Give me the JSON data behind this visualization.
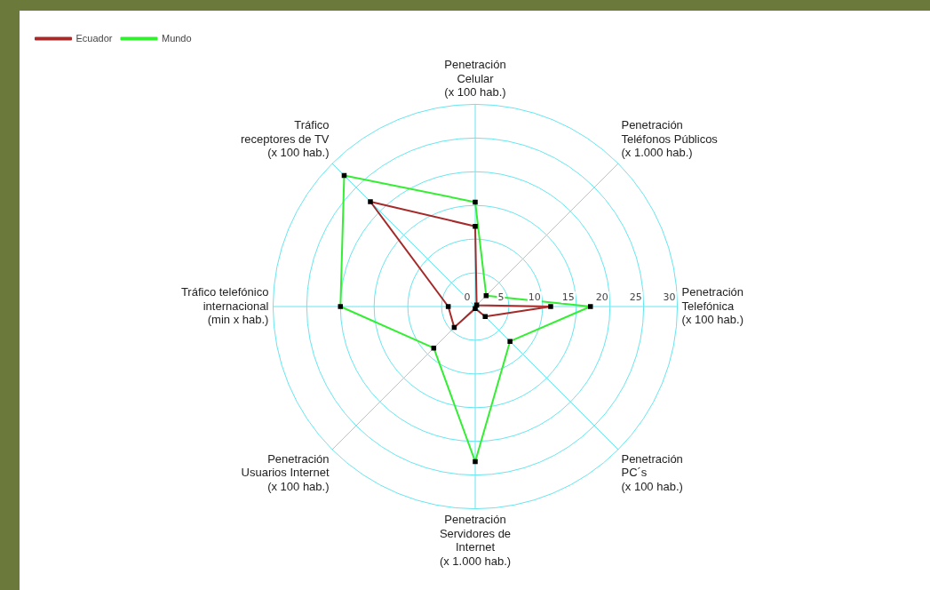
{
  "chart_data": {
    "type": "radar",
    "categories": [
      "Penetración\nCelular\n(x 100 hab.)",
      "Penetración\nTeléfonos Públicos\n(x 1.000 hab.)",
      "Penetración\nTelefónica\n(x 100 hab.)",
      "Penetración\nPC´s\n(x 100 hab.)",
      "Penetración\nServidores de\nInternet\n(x 1.000 hab.)",
      "Penetración\nUsuarios Internet\n(x 100 hab.)",
      "Tráfico telefónico\ninternacional\n(min x hab.)",
      "Tráfico\nreceptores de TV\n(x 100 hab.)"
    ],
    "series": [
      {
        "name": "Ecuador",
        "color": "#a52a2a",
        "values": [
          11.9,
          0.3,
          11.2,
          2.1,
          0.3,
          4.4,
          4,
          22
        ]
      },
      {
        "name": "Mundo",
        "color": "#33ee33",
        "values": [
          15.5,
          2.3,
          17.1,
          7.3,
          23,
          8.7,
          20,
          27.5
        ]
      }
    ],
    "ylim": [
      0,
      30
    ],
    "yticks": [
      0,
      5,
      10,
      15,
      20,
      25,
      30
    ],
    "grid": true,
    "legend": "top left",
    "marker": "square",
    "line_style": "solid"
  }
}
